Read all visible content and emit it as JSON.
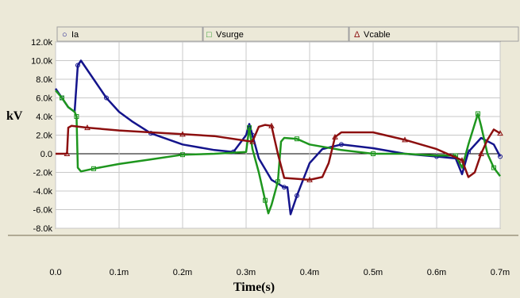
{
  "colors": {
    "panel_bg": "#ece9d8",
    "plot_bg": "#ffffff",
    "grid": "#c8c8c8",
    "Ia": "#14148c",
    "Vsurge": "#1e961e",
    "Vcable": "#8c0f0f"
  },
  "legend": {
    "items": [
      {
        "name": "Ia",
        "marker": "circle",
        "marker_text": "○"
      },
      {
        "name": "Vsurge",
        "marker": "square",
        "marker_text": "□"
      },
      {
        "name": "Vcable",
        "marker": "triangle",
        "marker_text": "Δ"
      }
    ]
  },
  "chart_data": {
    "type": "line",
    "title": "",
    "xlabel": "Time(s)",
    "ylabel": "kV",
    "xlim": [
      0,
      0.7
    ],
    "ylim": [
      -8.0,
      12.0
    ],
    "grid": true,
    "legend_position": "top",
    "xticks": [
      {
        "v": 0.0,
        "label": "0.0"
      },
      {
        "v": 0.1,
        "label": "0.1m"
      },
      {
        "v": 0.2,
        "label": "0.2m"
      },
      {
        "v": 0.3,
        "label": "0.3m"
      },
      {
        "v": 0.4,
        "label": "0.4m"
      },
      {
        "v": 0.5,
        "label": "0.5m"
      },
      {
        "v": 0.6,
        "label": "0.6m"
      },
      {
        "v": 0.7,
        "label": "0.7m"
      }
    ],
    "yticks": [
      {
        "v": 12,
        "label": "12.0k"
      },
      {
        "v": 10,
        "label": "10.0k"
      },
      {
        "v": 8,
        "label": "8.0k"
      },
      {
        "v": 6,
        "label": "6.0k"
      },
      {
        "v": 4,
        "label": "4.0k"
      },
      {
        "v": 2,
        "label": "2.0k"
      },
      {
        "v": 0,
        "label": "0.0"
      },
      {
        "v": -2,
        "label": "-2.0k"
      },
      {
        "v": -4,
        "label": "-4.0k"
      },
      {
        "v": -6,
        "label": "-6.0k"
      },
      {
        "v": -8,
        "label": "-8.0k"
      }
    ],
    "series": [
      {
        "name": "Ia",
        "x": [
          0.0,
          0.01,
          0.02,
          0.03,
          0.035,
          0.04,
          0.06,
          0.08,
          0.1,
          0.12,
          0.15,
          0.2,
          0.25,
          0.28,
          0.3,
          0.305,
          0.31,
          0.32,
          0.34,
          0.36,
          0.365,
          0.37,
          0.38,
          0.4,
          0.42,
          0.45,
          0.5,
          0.55,
          0.6,
          0.63,
          0.64,
          0.65,
          0.67,
          0.69,
          0.7
        ],
        "y": [
          7.0,
          6.0,
          5.0,
          4.5,
          9.5,
          10.0,
          8.0,
          6.0,
          4.5,
          3.5,
          2.2,
          1.0,
          0.4,
          0.2,
          2.0,
          3.2,
          2.0,
          -0.5,
          -2.8,
          -3.6,
          -3.6,
          -6.5,
          -4.5,
          -1.0,
          0.5,
          1.0,
          0.6,
          0.0,
          -0.3,
          -0.5,
          -2.2,
          0.2,
          1.7,
          1.0,
          -0.3
        ]
      },
      {
        "name": "Vsurge",
        "x": [
          0.0,
          0.01,
          0.02,
          0.03,
          0.033,
          0.035,
          0.04,
          0.06,
          0.1,
          0.15,
          0.2,
          0.25,
          0.3,
          0.305,
          0.31,
          0.32,
          0.33,
          0.335,
          0.34,
          0.35,
          0.355,
          0.36,
          0.38,
          0.4,
          0.45,
          0.5,
          0.55,
          0.6,
          0.63,
          0.64,
          0.65,
          0.665,
          0.67,
          0.68,
          0.69,
          0.7
        ],
        "y": [
          6.8,
          6.0,
          5.0,
          4.5,
          4.0,
          -1.5,
          -1.9,
          -1.6,
          -1.1,
          -0.6,
          -0.1,
          0.0,
          0.2,
          2.8,
          0.5,
          -2.0,
          -5.0,
          -6.4,
          -5.5,
          -3.0,
          1.3,
          1.7,
          1.6,
          1.0,
          0.4,
          0.0,
          0.0,
          -0.2,
          -0.2,
          -1.5,
          1.0,
          4.3,
          3.0,
          0.0,
          -1.5,
          -2.4
        ]
      },
      {
        "name": "Vcable",
        "x": [
          0.0,
          0.018,
          0.02,
          0.025,
          0.05,
          0.1,
          0.15,
          0.2,
          0.25,
          0.3,
          0.31,
          0.32,
          0.33,
          0.34,
          0.35,
          0.36,
          0.4,
          0.42,
          0.43,
          0.44,
          0.45,
          0.5,
          0.55,
          0.6,
          0.63,
          0.64,
          0.65,
          0.66,
          0.67,
          0.68,
          0.69,
          0.7
        ],
        "y": [
          0.0,
          0.0,
          2.8,
          3.0,
          2.8,
          2.5,
          2.3,
          2.1,
          1.9,
          1.4,
          1.3,
          2.9,
          3.1,
          3.0,
          0.0,
          -2.6,
          -2.8,
          -2.5,
          -1.0,
          1.8,
          2.3,
          2.3,
          1.5,
          0.5,
          -0.4,
          -0.7,
          -2.5,
          -2.0,
          0.0,
          1.5,
          2.6,
          2.2
        ]
      }
    ]
  }
}
